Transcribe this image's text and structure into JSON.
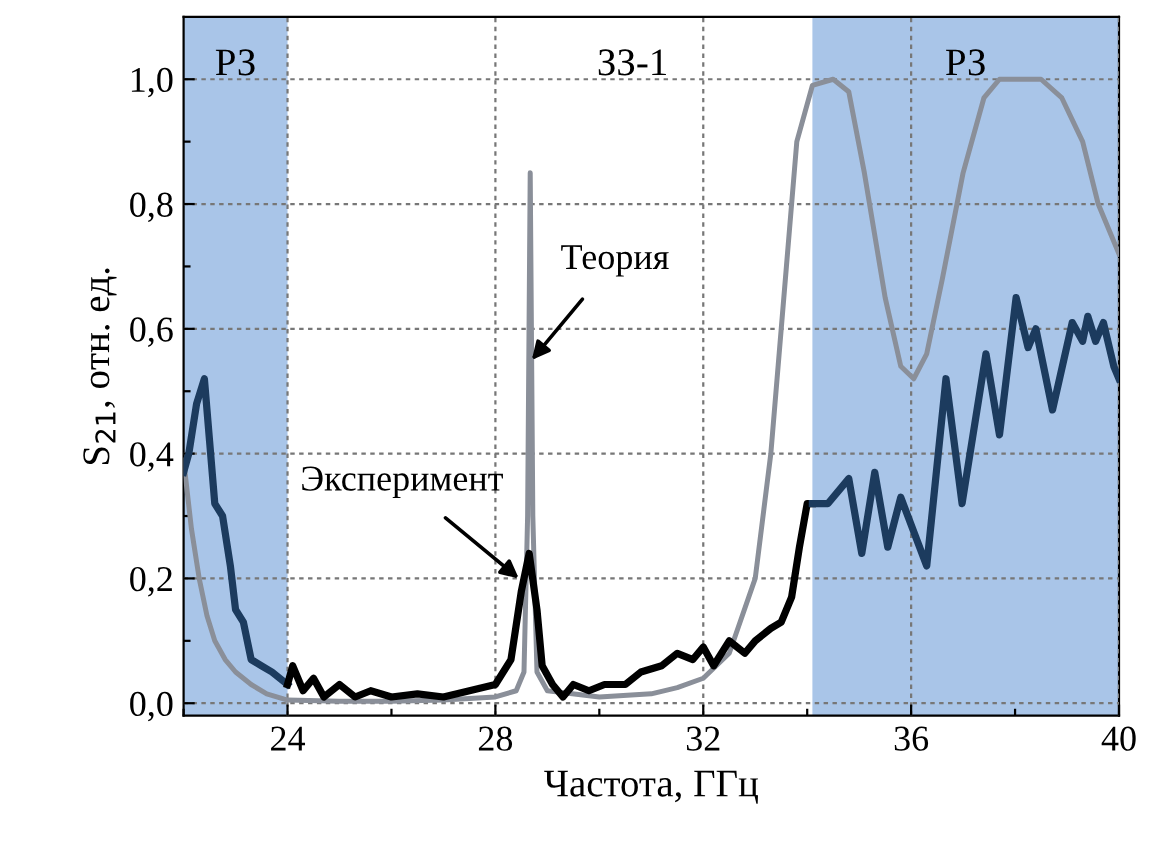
{
  "chart_data": {
    "type": "line",
    "xlabel": "Частота, ГГц",
    "ylabel": "S$_{21}$, отн. ед.",
    "xlim": [
      22,
      40
    ],
    "ylim": [
      -0.02,
      1.1
    ],
    "xticks": [
      {
        "value": 22,
        "label": null
      },
      24,
      {
        "value": 26,
        "label": null
      },
      28,
      {
        "value": 30,
        "label": null
      },
      32,
      {
        "value": 34,
        "label": null
      },
      36,
      {
        "value": 38,
        "label": null
      },
      40
    ],
    "yticks": [
      {
        "value": 0,
        "label": "0,0"
      },
      {
        "value": 0.1,
        "label": null
      },
      {
        "value": 0.2,
        "label": "0,2"
      },
      {
        "value": 0.3,
        "label": null
      },
      {
        "value": 0.4,
        "label": "0,4"
      },
      {
        "value": 0.5,
        "label": null
      },
      {
        "value": 0.6,
        "label": "0,6"
      },
      {
        "value": 0.7,
        "label": null
      },
      {
        "value": 0.8,
        "label": "0,8"
      },
      {
        "value": 0.9,
        "label": null
      },
      {
        "value": 1.0,
        "label": "1,0"
      }
    ],
    "grid": true,
    "bands": [
      {
        "axis": "x",
        "from": 22,
        "to": 24,
        "label": "РЗ",
        "color": "#a9c5e8"
      },
      {
        "axis": "x",
        "from": 34.1,
        "to": 40,
        "label": "РЗ",
        "color": "#a9c5e8"
      }
    ],
    "series": [
      {
        "color": "#8a8f99",
        "x": [
          22,
          22.15,
          22.3,
          22.45,
          22.6,
          22.8,
          23.0,
          23.3,
          23.6,
          24,
          25,
          26,
          27,
          28,
          28.4,
          28.55,
          28.62,
          28.67,
          28.72,
          28.8,
          29,
          30,
          31,
          31.5,
          32,
          32.5,
          33,
          33.3,
          33.6,
          33.8,
          34.1,
          34.5,
          34.8,
          35.1,
          35.5,
          35.8,
          36.05,
          36.3,
          36.6,
          37,
          37.4,
          37.7,
          38.5,
          38.9,
          39.3,
          39.6,
          40
        ],
        "values": [
          0.39,
          0.28,
          0.2,
          0.14,
          0.1,
          0.07,
          0.05,
          0.03,
          0.015,
          0.005,
          0.003,
          0.003,
          0.005,
          0.01,
          0.02,
          0.05,
          0.3,
          0.85,
          0.3,
          0.05,
          0.02,
          0.01,
          0.015,
          0.025,
          0.04,
          0.08,
          0.2,
          0.4,
          0.7,
          0.9,
          0.99,
          1.0,
          0.98,
          0.85,
          0.65,
          0.54,
          0.52,
          0.56,
          0.68,
          0.85,
          0.97,
          1.0,
          1.0,
          0.97,
          0.9,
          0.8,
          0.72
        ]
      },
      {
        "color": "#1c3b5e",
        "x": [
          22,
          22.1,
          22.25,
          22.4,
          22.5,
          22.6,
          22.75,
          22.9,
          23.0,
          23.15,
          23.3,
          23.5,
          23.7,
          23.85,
          24.0
        ],
        "values": [
          0.37,
          0.4,
          0.48,
          0.52,
          0.42,
          0.32,
          0.3,
          0.22,
          0.15,
          0.13,
          0.07,
          0.06,
          0.05,
          0.04,
          0.03
        ]
      },
      {
        "color": "#000000",
        "x": [
          24.0,
          24.1,
          24.3,
          24.5,
          24.7,
          25,
          25.3,
          25.6,
          26,
          26.5,
          27,
          27.5,
          28,
          28.3,
          28.5,
          28.65,
          28.8,
          28.9,
          29.1,
          29.3,
          29.5,
          29.8,
          30.1,
          30.5,
          30.8,
          31.2,
          31.5,
          31.8,
          32.0,
          32.2,
          32.5,
          32.8,
          33.0,
          33.3,
          33.5,
          33.7,
          33.85,
          34.0,
          34.1
        ],
        "values": [
          0.03,
          0.06,
          0.02,
          0.04,
          0.01,
          0.03,
          0.01,
          0.02,
          0.01,
          0.015,
          0.01,
          0.02,
          0.03,
          0.07,
          0.18,
          0.24,
          0.15,
          0.06,
          0.03,
          0.01,
          0.03,
          0.02,
          0.03,
          0.03,
          0.05,
          0.06,
          0.08,
          0.07,
          0.09,
          0.06,
          0.1,
          0.08,
          0.1,
          0.12,
          0.13,
          0.17,
          0.25,
          0.32,
          0.32
        ]
      },
      {
        "color": "#1c3b5e",
        "x": [
          34.1,
          34.4,
          34.8,
          35.05,
          35.3,
          35.55,
          35.8,
          36.3,
          36.67,
          36.98,
          37.44,
          37.7,
          38.02,
          38.25,
          38.4,
          38.72,
          39.1,
          39.3,
          39.4,
          39.55,
          39.7,
          39.9,
          40
        ],
        "values": [
          0.32,
          0.32,
          0.36,
          0.24,
          0.37,
          0.25,
          0.33,
          0.22,
          0.52,
          0.32,
          0.56,
          0.43,
          0.65,
          0.57,
          0.6,
          0.47,
          0.61,
          0.58,
          0.62,
          0.58,
          0.61,
          0.54,
          0.52
        ]
      }
    ],
    "annotations": [
      "ЗЗ-1",
      {
        "text": "Теория",
        "x": 28.7,
        "y": 0.55
      },
      {
        "text": "Эксперимент",
        "x": 28.45,
        "y": 0.2
      }
    ]
  }
}
